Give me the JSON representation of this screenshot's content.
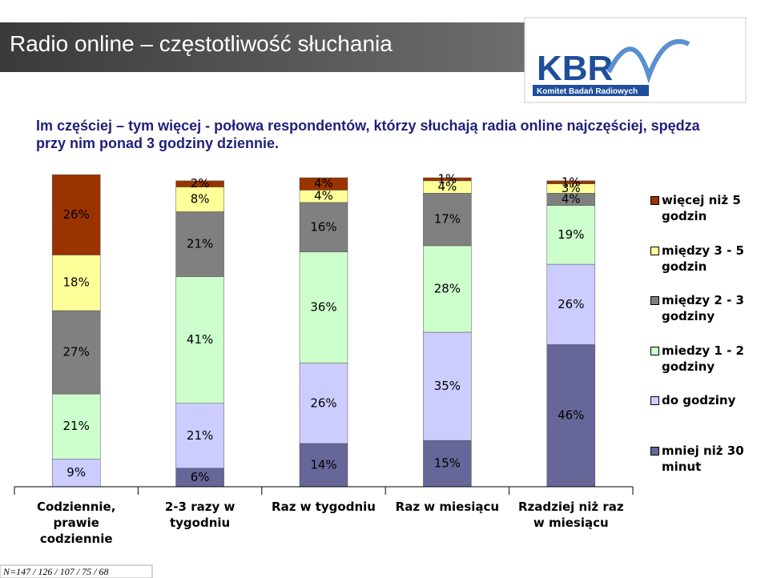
{
  "header": {
    "title": "Radio online – częstotliwość słuchania",
    "logo": "KBR",
    "logo_caption": "Komitet Badań Radiowych"
  },
  "subtitle": "Im częściej – tym więcej - połowa respondentów, którzy słuchają radia online najczęściej, spędza przy nim ponad 3 godziny dziennie.",
  "footnote": "N=147 / 126 / 107 / 75 / 68",
  "chart_data": {
    "type": "stacked_bar",
    "categories": [
      "Codziennie, prawie codziennie",
      "2-3 razy w tygodniu",
      "Raz w tygodniu",
      "Raz w miesiącu",
      "Rzadziej niż raz w miesiącu"
    ],
    "ylim": [
      0,
      100
    ],
    "series": [
      {
        "name": "więcej niż 5 godzin",
        "color": "#993300",
        "values": [
          26,
          2,
          4,
          1,
          1
        ],
        "value_labels": [
          "26%",
          "2%",
          "4%",
          "1%",
          "1%"
        ]
      },
      {
        "name": "między 3 - 5 godzin",
        "color": "#ffff99",
        "values": [
          18,
          8,
          4,
          4,
          3
        ],
        "value_labels": [
          "18%",
          "8%",
          "4%",
          "4%",
          "3%"
        ]
      },
      {
        "name": "między 2 - 3 godziny",
        "color": "#808080",
        "values": [
          27,
          21,
          16,
          17,
          4
        ],
        "value_labels": [
          "27%",
          "21%",
          "16%",
          "17%",
          "4%"
        ]
      },
      {
        "name": "miedzy 1 - 2 godziny",
        "color": "#ccffcc",
        "values": [
          21,
          41,
          36,
          28,
          19
        ],
        "value_labels": [
          "21%",
          "41%",
          "36%",
          "28%",
          "19%"
        ]
      },
      {
        "name": "do godziny",
        "color": "#ccccff",
        "values": [
          9,
          21,
          26,
          35,
          26
        ],
        "value_labels": [
          "9%",
          "21%",
          "26%",
          "35%",
          "26%"
        ]
      },
      {
        "name": "mniej niż 30 minut",
        "color": "#666699",
        "values": [
          null,
          6,
          14,
          15,
          46
        ],
        "value_labels": [
          null,
          "6%",
          "14%",
          "15%",
          "46%"
        ]
      }
    ]
  }
}
